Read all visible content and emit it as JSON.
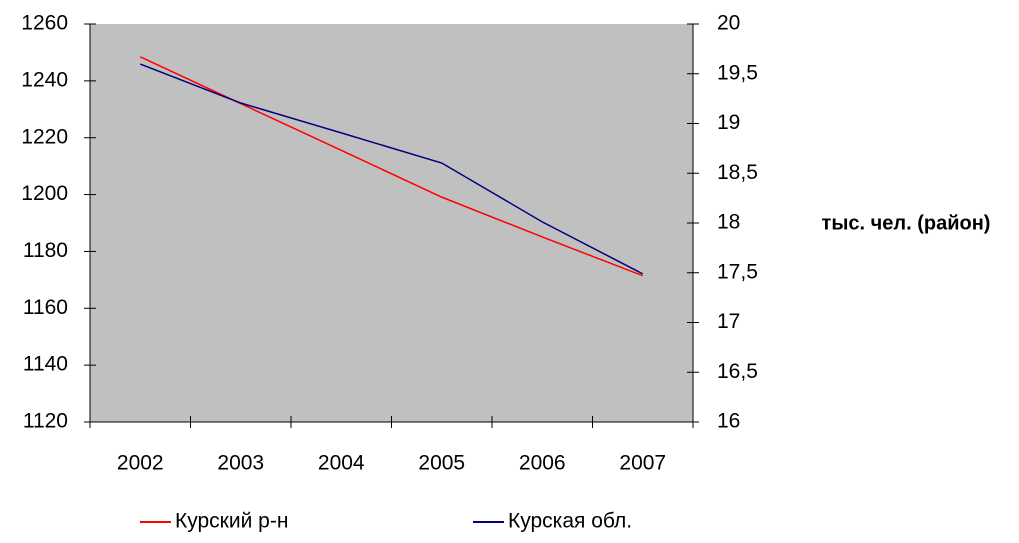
{
  "chart_data": {
    "type": "line",
    "categories": [
      "2002",
      "2003",
      "2004",
      "2005",
      "2006",
      "2007"
    ],
    "y2_label": "тыс. чел. (район)",
    "series": [
      {
        "name": "Курский р-н",
        "color": "#ff0000",
        "axis": "y2",
        "values": [
          19.67,
          19.2,
          18.73,
          18.26,
          17.86,
          17.47
        ]
      },
      {
        "name": "Курская обл.",
        "color": "#000080",
        "values": [
          1245.9,
          1232.2,
          1221.7,
          1211.1,
          1190.4,
          1172.1
        ]
      }
    ],
    "ylim": [
      1120,
      1260
    ],
    "yticks": [
      1120,
      1140,
      1160,
      1180,
      1200,
      1220,
      1240,
      1260
    ],
    "y2lim": [
      16,
      20
    ],
    "y2ticks": [
      16,
      {
        "value": 16.5,
        "label": "16,5"
      },
      17,
      {
        "value": 17.5,
        "label": "17,5"
      },
      18,
      {
        "value": 18.5,
        "label": "18,5"
      },
      19,
      {
        "value": 19.5,
        "label": "19,5"
      },
      20
    ],
    "background": "#c0c0c0",
    "legend": "bottom"
  }
}
